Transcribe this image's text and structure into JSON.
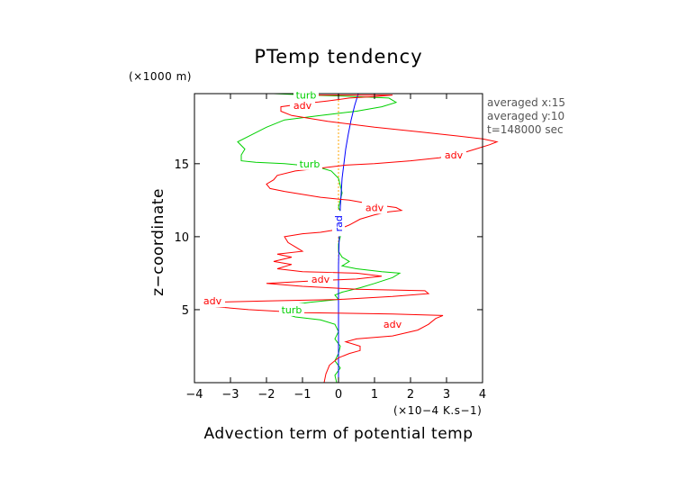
{
  "chart_data": {
    "type": "line",
    "title": "PTemp tendency",
    "xlabel": "Advection term of potential temp",
    "x_unit": "(×10−4 K.s−1)",
    "ylabel": "z−coordinate",
    "y_unit": "(×1000 m)",
    "xlim": [
      -4,
      4
    ],
    "ylim": [
      0,
      19.8
    ],
    "xticks": [
      -4,
      -3,
      -2,
      -1,
      0,
      1,
      2,
      3,
      4
    ],
    "yticks": [
      5,
      10,
      15
    ],
    "xtick_labels": [
      "−4",
      "−3",
      "−2",
      "−1",
      "0",
      "1",
      "2",
      "3",
      "4"
    ],
    "ytick_labels": [
      "5",
      "10",
      "15"
    ],
    "grid": false,
    "annotations": [
      "averaged x:15",
      "averaged y:10",
      "t=148000 sec"
    ],
    "series": [
      {
        "name": "adv",
        "color": "#ff0000",
        "label_positions": [
          [
            -1.0,
            19.0
          ],
          [
            3.2,
            15.6
          ],
          [
            1.0,
            12.0
          ],
          [
            -3.5,
            5.6
          ],
          [
            -0.5,
            7.1
          ],
          [
            1.5,
            4.0
          ]
        ],
        "points": [
          [
            -0.4,
            0.0
          ],
          [
            -0.35,
            0.6
          ],
          [
            -0.25,
            1.2
          ],
          [
            0.0,
            1.7
          ],
          [
            0.3,
            2.0
          ],
          [
            0.6,
            2.2
          ],
          [
            0.6,
            2.5
          ],
          [
            0.2,
            2.8
          ],
          [
            0.5,
            3.0
          ],
          [
            1.5,
            3.2
          ],
          [
            2.2,
            3.6
          ],
          [
            2.5,
            4.0
          ],
          [
            2.7,
            4.4
          ],
          [
            2.9,
            4.6
          ],
          [
            1.5,
            4.7
          ],
          [
            -1.0,
            4.8
          ],
          [
            -2.5,
            5.0
          ],
          [
            -3.4,
            5.2
          ],
          [
            -3.6,
            5.5
          ],
          [
            -2.0,
            5.6
          ],
          [
            0.0,
            5.7
          ],
          [
            1.5,
            5.9
          ],
          [
            2.5,
            6.1
          ],
          [
            2.4,
            6.3
          ],
          [
            0.5,
            6.4
          ],
          [
            -1.0,
            6.6
          ],
          [
            -2.0,
            6.8
          ],
          [
            -0.5,
            7.0
          ],
          [
            0.5,
            7.1
          ],
          [
            1.2,
            7.3
          ],
          [
            0.5,
            7.5
          ],
          [
            -1.0,
            7.6
          ],
          [
            -1.7,
            7.8
          ],
          [
            -1.3,
            8.1
          ],
          [
            -1.8,
            8.3
          ],
          [
            -1.3,
            8.6
          ],
          [
            -1.7,
            8.8
          ],
          [
            -1.0,
            9.0
          ],
          [
            -1.2,
            9.3
          ],
          [
            -1.4,
            9.6
          ],
          [
            -1.5,
            10.0
          ],
          [
            -1.0,
            10.2
          ],
          [
            -0.5,
            10.3
          ],
          [
            0.0,
            10.5
          ],
          [
            0.3,
            10.8
          ],
          [
            0.6,
            11.2
          ],
          [
            1.0,
            11.5
          ],
          [
            1.4,
            11.7
          ],
          [
            1.75,
            11.8
          ],
          [
            1.6,
            12.0
          ],
          [
            1.0,
            12.2
          ],
          [
            0.3,
            12.5
          ],
          [
            -0.5,
            12.7
          ],
          [
            -1.0,
            12.9
          ],
          [
            -1.5,
            13.1
          ],
          [
            -1.9,
            13.3
          ],
          [
            -2.0,
            13.6
          ],
          [
            -1.8,
            13.9
          ],
          [
            -1.7,
            14.2
          ],
          [
            -1.2,
            14.5
          ],
          [
            -0.5,
            14.7
          ],
          [
            0.2,
            14.9
          ],
          [
            1.0,
            15.0
          ],
          [
            2.0,
            15.2
          ],
          [
            2.8,
            15.4
          ],
          [
            3.4,
            15.7
          ],
          [
            3.8,
            16.0
          ],
          [
            4.2,
            16.3
          ],
          [
            4.4,
            16.5
          ],
          [
            4.0,
            16.7
          ],
          [
            3.3,
            16.9
          ],
          [
            2.2,
            17.2
          ],
          [
            1.0,
            17.5
          ],
          [
            -0.3,
            17.9
          ],
          [
            -1.3,
            18.3
          ],
          [
            -1.6,
            18.6
          ],
          [
            -1.6,
            18.9
          ],
          [
            -1.0,
            19.1
          ],
          [
            -0.3,
            19.3
          ],
          [
            0.3,
            19.5
          ],
          [
            1.0,
            19.6
          ],
          [
            1.5,
            19.7
          ],
          [
            -0.5,
            19.7
          ],
          [
            -1.3,
            19.8
          ]
        ]
      },
      {
        "name": "turb",
        "color": "#00d000",
        "label_positions": [
          [
            -0.9,
            19.7
          ],
          [
            -0.8,
            15.0
          ],
          [
            -1.3,
            5.0
          ]
        ],
        "points": [
          [
            -0.05,
            0.0
          ],
          [
            -0.1,
            0.5
          ],
          [
            0.05,
            1.0
          ],
          [
            -0.1,
            1.5
          ],
          [
            0.0,
            2.0
          ],
          [
            0.05,
            2.5
          ],
          [
            -0.1,
            3.0
          ],
          [
            0.0,
            3.5
          ],
          [
            -0.1,
            4.0
          ],
          [
            -0.5,
            4.3
          ],
          [
            -1.2,
            4.5
          ],
          [
            -1.6,
            4.8
          ],
          [
            -1.0,
            5.0
          ],
          [
            -1.4,
            5.3
          ],
          [
            -0.8,
            5.5
          ],
          [
            0.0,
            5.7
          ],
          [
            -0.1,
            6.0
          ],
          [
            0.1,
            6.2
          ],
          [
            0.6,
            6.5
          ],
          [
            1.0,
            6.8
          ],
          [
            1.5,
            7.2
          ],
          [
            1.7,
            7.5
          ],
          [
            1.2,
            7.6
          ],
          [
            0.5,
            7.8
          ],
          [
            0.1,
            8.0
          ],
          [
            0.3,
            8.3
          ],
          [
            0.1,
            8.6
          ],
          [
            0.0,
            9.0
          ],
          [
            0.0,
            9.5
          ],
          [
            0.05,
            10.0
          ],
          [
            0.1,
            10.5
          ],
          [
            0.0,
            11.0
          ],
          [
            0.1,
            11.5
          ],
          [
            0.0,
            12.0
          ],
          [
            0.05,
            12.5
          ],
          [
            0.1,
            13.0
          ],
          [
            0.05,
            13.5
          ],
          [
            0.0,
            14.0
          ],
          [
            -0.2,
            14.5
          ],
          [
            -0.6,
            14.8
          ],
          [
            -1.5,
            15.0
          ],
          [
            -2.3,
            15.1
          ],
          [
            -2.7,
            15.2
          ],
          [
            -2.7,
            15.6
          ],
          [
            -2.6,
            16.0
          ],
          [
            -2.8,
            16.5
          ],
          [
            -2.4,
            17.0
          ],
          [
            -2.0,
            17.5
          ],
          [
            -1.5,
            18.0
          ],
          [
            -0.5,
            18.3
          ],
          [
            0.5,
            18.6
          ],
          [
            1.2,
            18.9
          ],
          [
            1.6,
            19.2
          ],
          [
            1.4,
            19.5
          ],
          [
            0.5,
            19.6
          ],
          [
            -0.8,
            19.7
          ],
          [
            -1.8,
            19.8
          ]
        ]
      },
      {
        "name": "rad",
        "color": "#0000ff",
        "label_positions": [
          [
            0.0,
            10.9
          ]
        ],
        "points": [
          [
            0.0,
            0.0
          ],
          [
            0.0,
            2.0
          ],
          [
            0.0,
            4.0
          ],
          [
            0.0,
            6.0
          ],
          [
            0.0,
            8.0
          ],
          [
            0.02,
            10.0
          ],
          [
            0.05,
            12.0
          ],
          [
            0.1,
            14.0
          ],
          [
            0.15,
            15.0
          ],
          [
            0.2,
            16.0
          ],
          [
            0.27,
            17.0
          ],
          [
            0.35,
            18.0
          ],
          [
            0.45,
            19.0
          ],
          [
            0.55,
            19.8
          ]
        ]
      },
      {
        "name": "",
        "color": "#ffa500",
        "points": [
          [
            0.0,
            0.0
          ],
          [
            0.0,
            19.8
          ]
        ]
      }
    ]
  }
}
